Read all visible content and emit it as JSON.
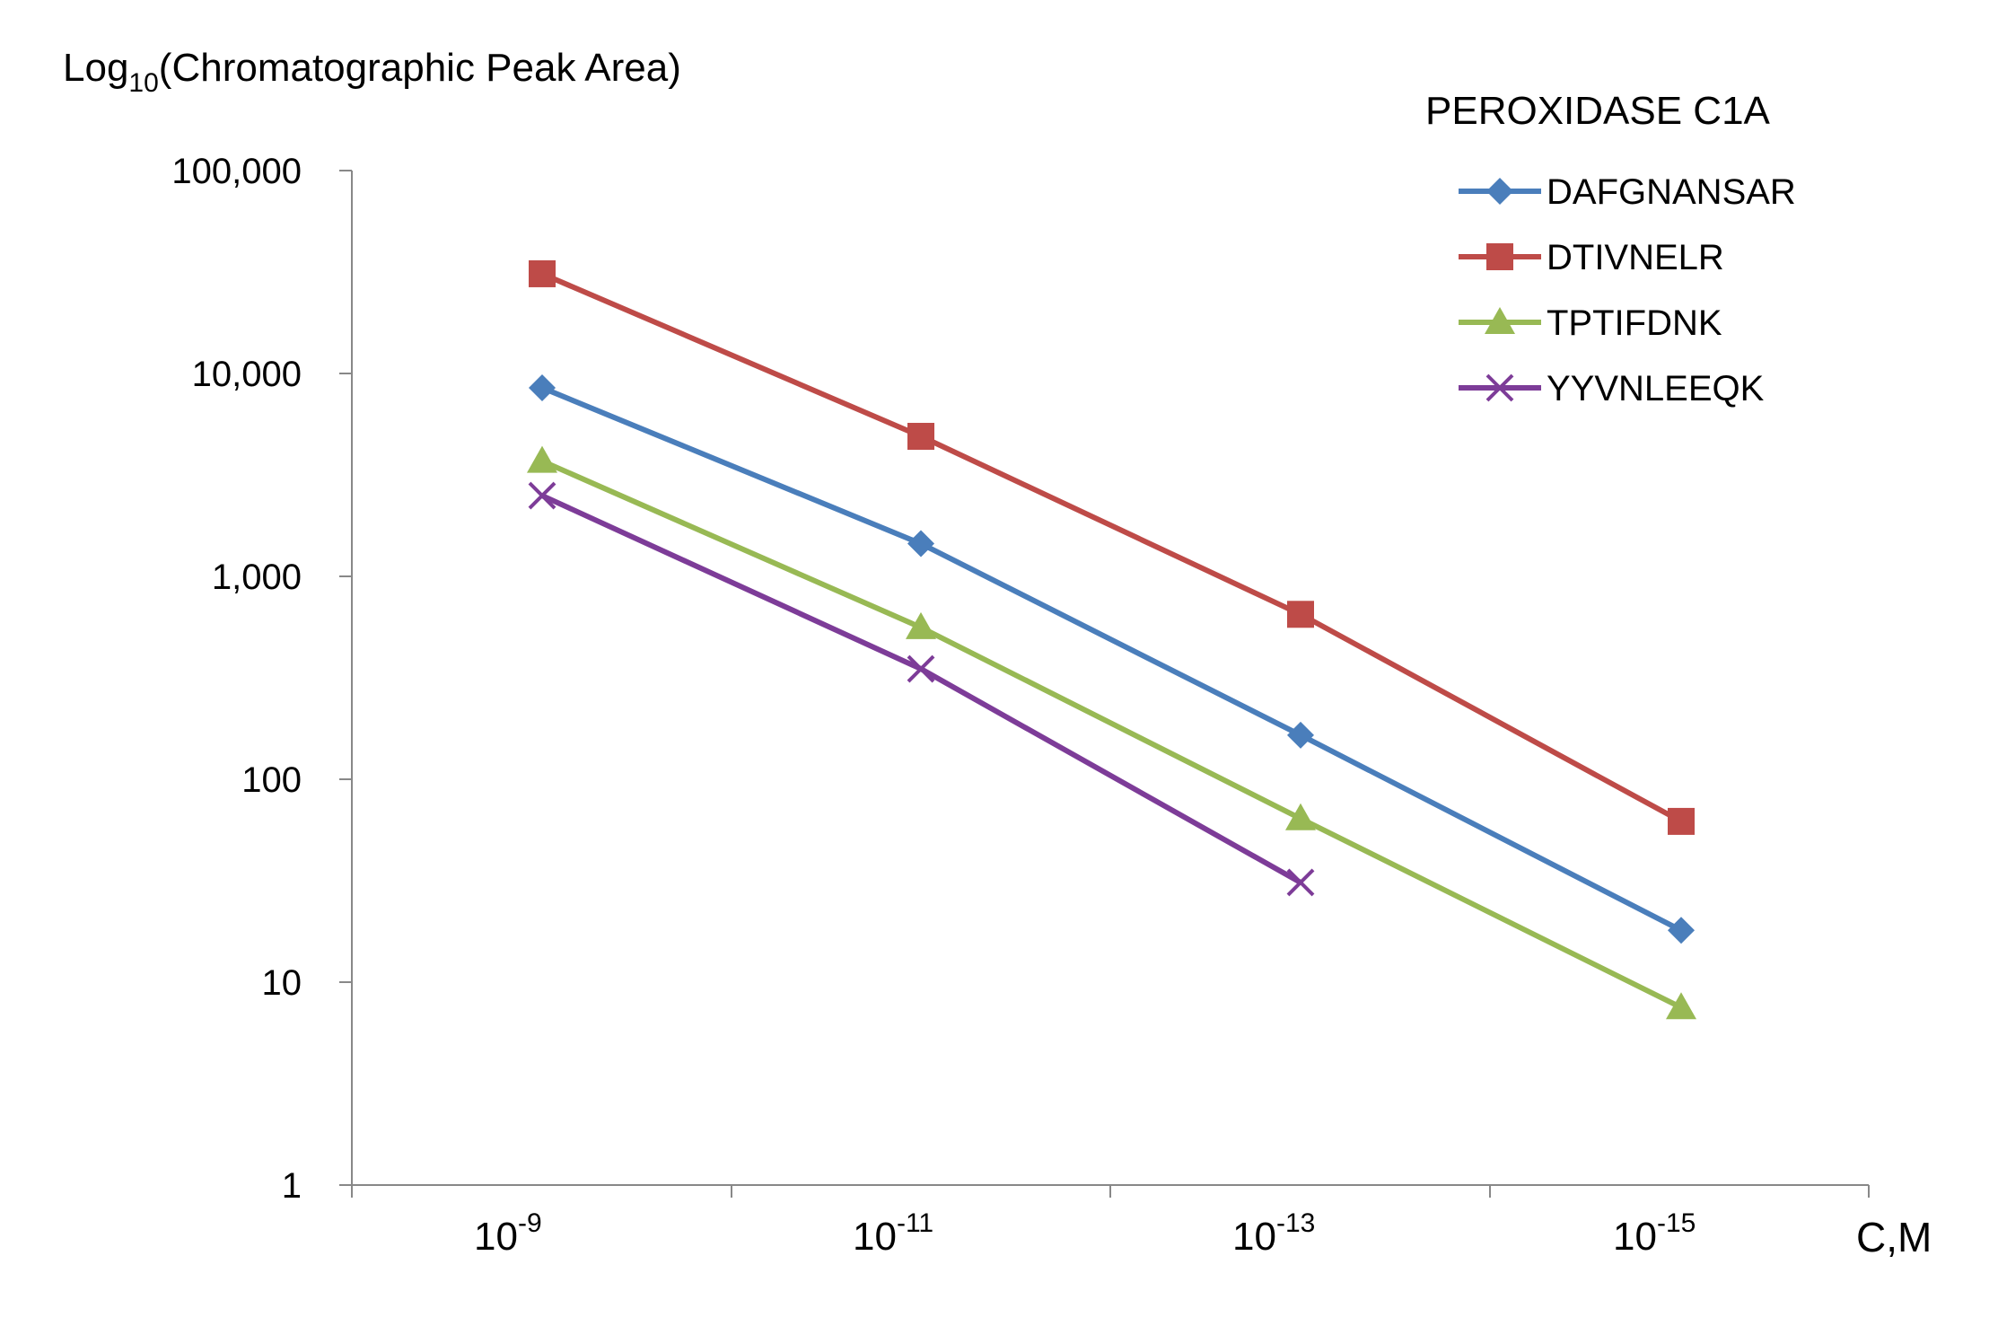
{
  "chart_data": {
    "type": "line",
    "title": "PEROXIDASE C1A",
    "ylabel": {
      "prefix": "Log",
      "sub": "10",
      "suffix": "(Chromatographic Peak  Area)"
    },
    "xlabel": "C,M",
    "yscale": "log10",
    "ylim": [
      1,
      100000
    ],
    "y_ticks": [
      1,
      10,
      100,
      1000,
      10000,
      100000
    ],
    "y_tick_labels": [
      "1",
      "10",
      "100",
      "1,000",
      "10,000",
      "100,000"
    ],
    "x_tick_labels": [
      {
        "base": "10",
        "exp": "-9"
      },
      {
        "base": "10",
        "exp": "-11"
      },
      {
        "base": "10",
        "exp": "-13"
      },
      {
        "base": "10",
        "exp": "-15"
      }
    ],
    "x_categories": [
      "1e-9",
      "1e-11",
      "1e-13",
      "1e-15"
    ],
    "legend_position": "top-right",
    "series": [
      {
        "name": "DAFGNANSAR",
        "color": "#4a7ebb",
        "marker": "diamond",
        "values": [
          8500,
          1450,
          165,
          18
        ]
      },
      {
        "name": "DTIVNELR",
        "color": "#be4b48",
        "marker": "square",
        "values": [
          31000,
          4900,
          650,
          62
        ]
      },
      {
        "name": "TPTIFDNK",
        "color": "#98b954",
        "marker": "triangle",
        "values": [
          3700,
          560,
          64,
          7.5
        ]
      },
      {
        "name": "YYVNLEEQK",
        "color": "#7d3c98",
        "marker": "x",
        "values": [
          2500,
          350,
          31
        ]
      }
    ]
  }
}
